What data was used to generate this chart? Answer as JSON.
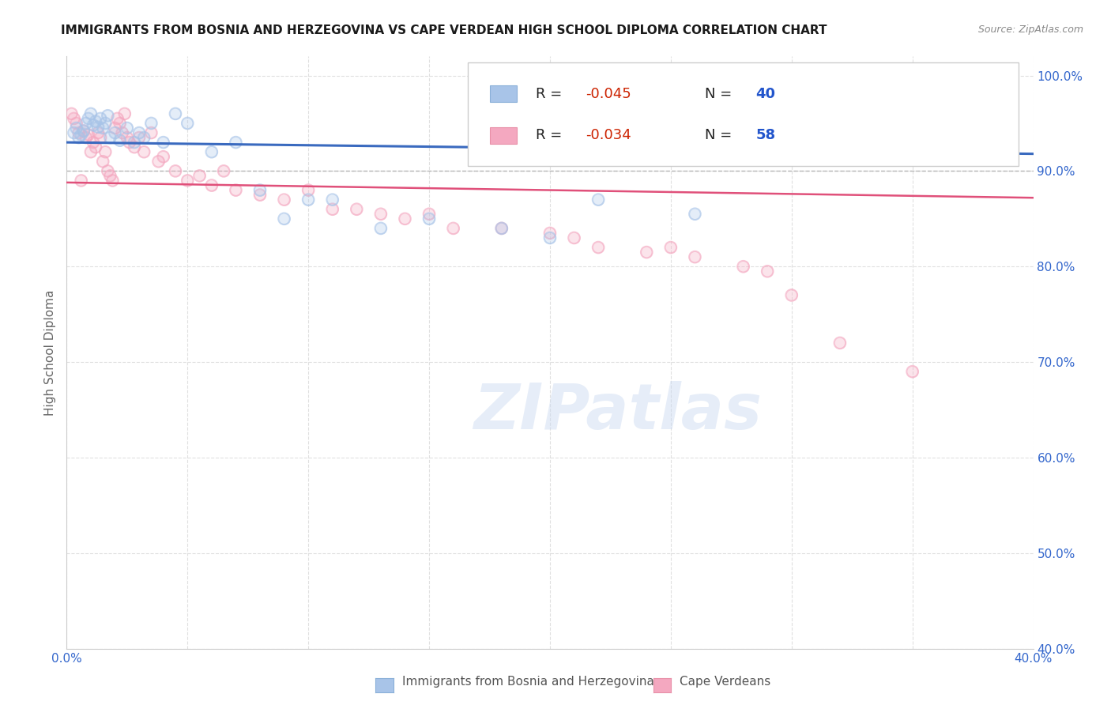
{
  "title": "IMMIGRANTS FROM BOSNIA AND HERZEGOVINA VS CAPE VERDEAN HIGH SCHOOL DIPLOMA CORRELATION CHART",
  "source": "Source: ZipAtlas.com",
  "ylabel": "High School Diploma",
  "legend_label1": "Immigrants from Bosnia and Herzegovina",
  "legend_label2": "Cape Verdeans",
  "R1": -0.045,
  "N1": 40,
  "R2": -0.034,
  "N2": 58,
  "color1": "#a8c4e8",
  "color2": "#f4a8c0",
  "line_color1": "#3a6abf",
  "line_color2": "#e0507a",
  "xlim": [
    0.0,
    0.4
  ],
  "ylim": [
    0.4,
    1.02
  ],
  "xticks": [
    0.0,
    0.05,
    0.1,
    0.15,
    0.2,
    0.25,
    0.3,
    0.35,
    0.4
  ],
  "yticks": [
    0.4,
    0.5,
    0.6,
    0.7,
    0.8,
    0.9,
    1.0
  ],
  "ytick_labels": [
    "40.0%",
    "50.0%",
    "60.0%",
    "70.0%",
    "80.0%",
    "90.0%",
    "100.0%"
  ],
  "blue_scatter_x": [
    0.003,
    0.004,
    0.005,
    0.006,
    0.007,
    0.008,
    0.009,
    0.01,
    0.011,
    0.012,
    0.013,
    0.014,
    0.015,
    0.016,
    0.017,
    0.018,
    0.02,
    0.022,
    0.025,
    0.028,
    0.03,
    0.032,
    0.035,
    0.04,
    0.045,
    0.05,
    0.06,
    0.07,
    0.08,
    0.09,
    0.1,
    0.11,
    0.13,
    0.15,
    0.18,
    0.2,
    0.22,
    0.26,
    0.31,
    0.32
  ],
  "blue_scatter_y": [
    0.94,
    0.945,
    0.935,
    0.938,
    0.942,
    0.95,
    0.955,
    0.96,
    0.948,
    0.952,
    0.946,
    0.955,
    0.945,
    0.95,
    0.958,
    0.935,
    0.94,
    0.932,
    0.945,
    0.93,
    0.94,
    0.935,
    0.95,
    0.93,
    0.96,
    0.95,
    0.92,
    0.93,
    0.88,
    0.85,
    0.87,
    0.87,
    0.84,
    0.85,
    0.84,
    0.83,
    0.87,
    0.855,
    0.935,
    0.94
  ],
  "pink_scatter_x": [
    0.002,
    0.003,
    0.004,
    0.005,
    0.006,
    0.007,
    0.008,
    0.009,
    0.01,
    0.011,
    0.012,
    0.013,
    0.014,
    0.015,
    0.016,
    0.017,
    0.018,
    0.019,
    0.02,
    0.021,
    0.022,
    0.023,
    0.024,
    0.025,
    0.026,
    0.028,
    0.03,
    0.032,
    0.035,
    0.038,
    0.04,
    0.045,
    0.05,
    0.055,
    0.06,
    0.065,
    0.07,
    0.08,
    0.09,
    0.1,
    0.11,
    0.12,
    0.13,
    0.14,
    0.15,
    0.16,
    0.18,
    0.2,
    0.21,
    0.22,
    0.24,
    0.25,
    0.26,
    0.28,
    0.29,
    0.3,
    0.32,
    0.35
  ],
  "pink_scatter_y": [
    0.96,
    0.955,
    0.95,
    0.94,
    0.89,
    0.942,
    0.935,
    0.938,
    0.92,
    0.93,
    0.925,
    0.94,
    0.935,
    0.91,
    0.92,
    0.9,
    0.895,
    0.89,
    0.945,
    0.955,
    0.95,
    0.94,
    0.96,
    0.935,
    0.93,
    0.925,
    0.935,
    0.92,
    0.94,
    0.91,
    0.915,
    0.9,
    0.89,
    0.895,
    0.885,
    0.9,
    0.88,
    0.875,
    0.87,
    0.88,
    0.86,
    0.86,
    0.855,
    0.85,
    0.855,
    0.84,
    0.84,
    0.835,
    0.83,
    0.82,
    0.815,
    0.82,
    0.81,
    0.8,
    0.795,
    0.77,
    0.72,
    0.69
  ],
  "blue_line_y0": 0.93,
  "blue_line_y1": 0.918,
  "pink_line_y0": 0.888,
  "pink_line_y1": 0.872,
  "dashed_line_y": 0.9,
  "watermark": "ZIPatlas",
  "background_color": "#ffffff",
  "grid_color": "#dddddd"
}
